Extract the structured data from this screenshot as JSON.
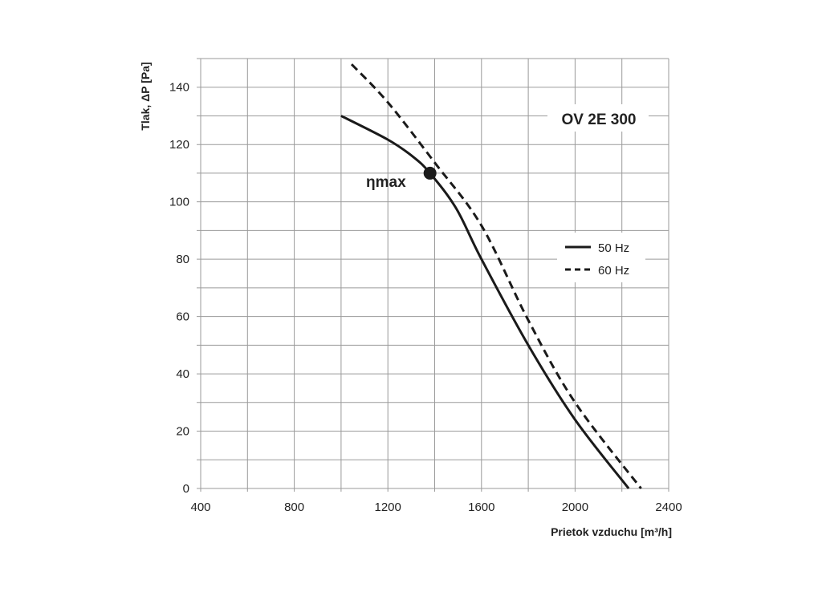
{
  "chart_data": {
    "type": "line",
    "title": "OV 2E 300",
    "xlabel": "Prietok vzduchu  [m³/h]",
    "ylabel": "Tlak, ΔP [Pa]",
    "xlim": [
      400,
      2400
    ],
    "ylim": [
      0,
      150
    ],
    "xticks": [
      400,
      800,
      1200,
      1600,
      2000,
      2400
    ],
    "yticks": [
      0,
      20,
      40,
      60,
      80,
      100,
      120,
      140
    ],
    "x_grid_step": 200,
    "y_grid_step": 10,
    "grid": true,
    "legend_position": "right",
    "series": [
      {
        "name": "50 Hz",
        "style": "solid",
        "x": [
          1000,
          1200,
          1308,
          1380,
          1492,
          1600,
          1800,
          2000,
          2229
        ],
        "y": [
          130,
          121.7,
          115.7,
          110,
          97.7,
          80,
          50,
          24,
          0
        ]
      },
      {
        "name": "60 Hz",
        "style": "dashed",
        "x": [
          1045,
          1200,
          1400,
          1600,
          1800,
          2000,
          2282
        ],
        "y": [
          148,
          134.7,
          113.7,
          91.7,
          58.7,
          30,
          0
        ]
      }
    ],
    "annotations": [
      {
        "text": "ηmax",
        "x": 1380,
        "y": 110
      }
    ],
    "colors": {
      "line": "#1a1a1a",
      "grid": "#9a9a9a"
    }
  }
}
